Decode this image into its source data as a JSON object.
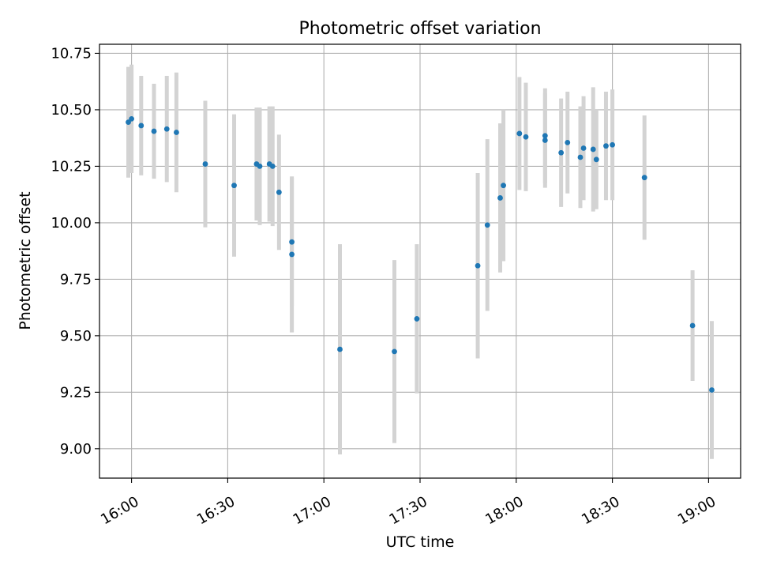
{
  "chart_data": {
    "type": "scatter",
    "title": "Photometric offset variation",
    "xlabel": "UTC time",
    "ylabel": "Photometric offset",
    "x_unit": "HH:MM (UTC)",
    "xlim": [
      "15:50",
      "19:10"
    ],
    "ylim": [
      8.87,
      10.79
    ],
    "x_ticks": [
      "16:00",
      "16:30",
      "17:00",
      "17:30",
      "18:00",
      "18:30",
      "19:00"
    ],
    "y_ticks": [
      "9.00",
      "9.25",
      "9.50",
      "9.75",
      "10.00",
      "10.25",
      "10.50",
      "10.75"
    ],
    "grid": true,
    "legend": "none",
    "colors": {
      "point": "#1f77b4",
      "errorbar": "#d3d3d3",
      "grid": "#b0b0b0"
    },
    "series": [
      {
        "points": [
          {
            "x": "15:59",
            "y": 10.445,
            "err": 0.245
          },
          {
            "x": "16:00",
            "y": 10.46,
            "err": 0.24
          },
          {
            "x": "16:03",
            "y": 10.43,
            "err": 0.22
          },
          {
            "x": "16:07",
            "y": 10.405,
            "err": 0.21
          },
          {
            "x": "16:11",
            "y": 10.415,
            "err": 0.235
          },
          {
            "x": "16:14",
            "y": 10.4,
            "err": 0.265
          },
          {
            "x": "16:23",
            "y": 10.26,
            "err": 0.28
          },
          {
            "x": "16:32",
            "y": 10.165,
            "err": 0.315
          },
          {
            "x": "16:39",
            "y": 10.26,
            "err": 0.25
          },
          {
            "x": "16:40",
            "y": 10.25,
            "err": 0.26
          },
          {
            "x": "16:43",
            "y": 10.26,
            "err": 0.255
          },
          {
            "x": "16:44",
            "y": 10.25,
            "err": 0.265
          },
          {
            "x": "16:46",
            "y": 10.135,
            "err": 0.255
          },
          {
            "x": "16:50",
            "y": 9.915,
            "err": 0.285
          },
          {
            "x": "16:50",
            "y": 9.86,
            "err": 0.345
          },
          {
            "x": "17:05",
            "y": 9.44,
            "err": 0.465
          },
          {
            "x": "17:22",
            "y": 9.43,
            "err": 0.405
          },
          {
            "x": "17:29",
            "y": 9.575,
            "err": 0.33
          },
          {
            "x": "17:48",
            "y": 9.81,
            "err": 0.41
          },
          {
            "x": "17:51",
            "y": 9.99,
            "err": 0.38
          },
          {
            "x": "17:55",
            "y": 10.11,
            "err": 0.33
          },
          {
            "x": "17:56",
            "y": 10.165,
            "err": 0.335
          },
          {
            "x": "18:01",
            "y": 10.395,
            "err": 0.25
          },
          {
            "x": "18:03",
            "y": 10.38,
            "err": 0.24
          },
          {
            "x": "18:09",
            "y": 10.365,
            "err": 0.21
          },
          {
            "x": "18:09",
            "y": 10.385,
            "err": 0.21
          },
          {
            "x": "18:14",
            "y": 10.31,
            "err": 0.24
          },
          {
            "x": "18:16",
            "y": 10.355,
            "err": 0.225
          },
          {
            "x": "18:20",
            "y": 10.29,
            "err": 0.225
          },
          {
            "x": "18:21",
            "y": 10.33,
            "err": 0.23
          },
          {
            "x": "18:24",
            "y": 10.325,
            "err": 0.275
          },
          {
            "x": "18:25",
            "y": 10.28,
            "err": 0.22
          },
          {
            "x": "18:28",
            "y": 10.34,
            "err": 0.24
          },
          {
            "x": "18:30",
            "y": 10.345,
            "err": 0.245
          },
          {
            "x": "18:40",
            "y": 10.2,
            "err": 0.275
          },
          {
            "x": "18:55",
            "y": 9.545,
            "err": 0.245
          },
          {
            "x": "19:01",
            "y": 9.26,
            "err": 0.305
          }
        ]
      }
    ]
  }
}
